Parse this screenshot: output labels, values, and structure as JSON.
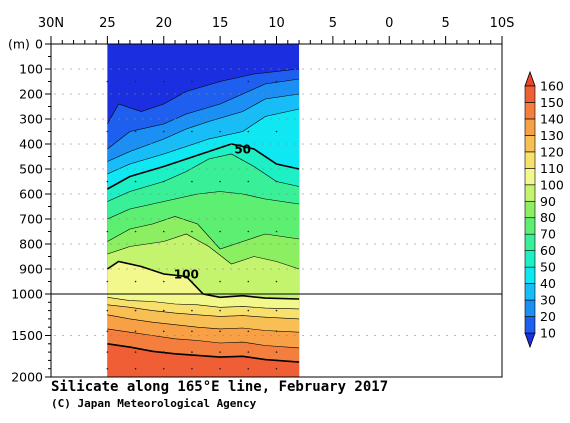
{
  "chart_data": {
    "type": "heatmap",
    "subtype": "contour-section",
    "title": "Silicate along 165°E line, February 2017",
    "credit": "(C) Japan Meteorological Agency",
    "x_axis": {
      "tick_labels": [
        "30N",
        "25",
        "20",
        "15",
        "10",
        "5",
        "0",
        "5",
        "10S"
      ],
      "range_lat": [
        30,
        -10
      ],
      "data_extent_lat": [
        25,
        8
      ]
    },
    "y_axis": {
      "unit_label": "(m)",
      "upper_ticks": [
        0,
        100,
        200,
        300,
        400,
        500,
        600,
        700,
        800,
        900,
        1000
      ],
      "lower_ticks": [
        1500,
        2000
      ],
      "break_depth": 1000,
      "range": [
        0,
        2000
      ]
    },
    "colorbar": {
      "levels": [
        10,
        20,
        30,
        40,
        50,
        60,
        70,
        80,
        90,
        100,
        110,
        120,
        130,
        140,
        150,
        160
      ],
      "colors": [
        "#1c2fe0",
        "#1f5ff0",
        "#1b8ff4",
        "#18bdf7",
        "#0fe8f2",
        "#1cf0c4",
        "#39ef98",
        "#5cef72",
        "#8cef62",
        "#c4f46e",
        "#f2f88c",
        "#f8e06c",
        "#f8c054",
        "#f8a046",
        "#f47e3e",
        "#f05e36",
        "#e8462c"
      ]
    },
    "contour_labels": [
      {
        "value": "50",
        "lat": 13,
        "depth": 420
      },
      {
        "value": "100",
        "lat": 18,
        "depth": 920
      }
    ],
    "contours": [
      {
        "value": 10,
        "points": [
          [
            25,
            320
          ],
          [
            24,
            240
          ],
          [
            22,
            270
          ],
          [
            20,
            240
          ],
          [
            18,
            190
          ],
          [
            15,
            150
          ],
          [
            12,
            120
          ],
          [
            10,
            110
          ],
          [
            8,
            100
          ]
        ]
      },
      {
        "value": 20,
        "points": [
          [
            25,
            420
          ],
          [
            23,
            350
          ],
          [
            20,
            320
          ],
          [
            18,
            280
          ],
          [
            15,
            240
          ],
          [
            13,
            200
          ],
          [
            11,
            160
          ],
          [
            8,
            140
          ]
        ]
      },
      {
        "value": 30,
        "points": [
          [
            25,
            470
          ],
          [
            23,
            430
          ],
          [
            20,
            380
          ],
          [
            18,
            340
          ],
          [
            16,
            310
          ],
          [
            13,
            270
          ],
          [
            11,
            220
          ],
          [
            8,
            200
          ]
        ]
      },
      {
        "value": 40,
        "points": [
          [
            25,
            520
          ],
          [
            23,
            480
          ],
          [
            20,
            440
          ],
          [
            18,
            410
          ],
          [
            16,
            380
          ],
          [
            13,
            350
          ],
          [
            11,
            290
          ],
          [
            8,
            260
          ]
        ]
      },
      {
        "value": 50,
        "points": [
          [
            25,
            580
          ],
          [
            23,
            530
          ],
          [
            20,
            490
          ],
          [
            18,
            460
          ],
          [
            16,
            430
          ],
          [
            14,
            400
          ],
          [
            12,
            420
          ],
          [
            10,
            480
          ],
          [
            8,
            500
          ]
        ]
      },
      {
        "value": 60,
        "points": [
          [
            25,
            630
          ],
          [
            23,
            590
          ],
          [
            20,
            550
          ],
          [
            18,
            510
          ],
          [
            16,
            460
          ],
          [
            14,
            440
          ],
          [
            12,
            490
          ],
          [
            10,
            550
          ],
          [
            8,
            570
          ]
        ]
      },
      {
        "value": 70,
        "points": [
          [
            25,
            700
          ],
          [
            23,
            660
          ],
          [
            21,
            640
          ],
          [
            19,
            620
          ],
          [
            17,
            600
          ],
          [
            15,
            590
          ],
          [
            13,
            600
          ],
          [
            11,
            620
          ],
          [
            8,
            640
          ]
        ]
      },
      {
        "value": 80,
        "points": [
          [
            25,
            790
          ],
          [
            23,
            740
          ],
          [
            21,
            720
          ],
          [
            19,
            690
          ],
          [
            17,
            720
          ],
          [
            15,
            820
          ],
          [
            13,
            790
          ],
          [
            11,
            760
          ],
          [
            8,
            780
          ]
        ]
      },
      {
        "value": 90,
        "points": [
          [
            25,
            840
          ],
          [
            23,
            810
          ],
          [
            20,
            790
          ],
          [
            18,
            760
          ],
          [
            16,
            810
          ],
          [
            14,
            880
          ],
          [
            12,
            850
          ],
          [
            10,
            870
          ],
          [
            8,
            900
          ]
        ]
      },
      {
        "value": 100,
        "points": [
          [
            25,
            900
          ],
          [
            24,
            870
          ],
          [
            22,
            890
          ],
          [
            20,
            920
          ],
          [
            18,
            930
          ],
          [
            16.5,
            1000
          ],
          [
            15,
            1040
          ],
          [
            13,
            1020
          ],
          [
            11,
            1050
          ],
          [
            8,
            1060
          ]
        ]
      },
      {
        "value": 110,
        "points": [
          [
            25,
            1040
          ],
          [
            23,
            1080
          ],
          [
            21,
            1090
          ],
          [
            19,
            1120
          ],
          [
            17,
            1130
          ],
          [
            15,
            1160
          ],
          [
            13,
            1150
          ],
          [
            11,
            1170
          ],
          [
            8,
            1180
          ]
        ]
      },
      {
        "value": 120,
        "points": [
          [
            25,
            1130
          ],
          [
            23,
            1160
          ],
          [
            21,
            1200
          ],
          [
            19,
            1230
          ],
          [
            17,
            1250
          ],
          [
            15,
            1270
          ],
          [
            13,
            1260
          ],
          [
            11,
            1280
          ],
          [
            8,
            1300
          ]
        ]
      },
      {
        "value": 130,
        "points": [
          [
            25,
            1250
          ],
          [
            23,
            1300
          ],
          [
            21,
            1340
          ],
          [
            19,
            1370
          ],
          [
            17,
            1400
          ],
          [
            15,
            1420
          ],
          [
            13,
            1410
          ],
          [
            11,
            1440
          ],
          [
            8,
            1460
          ]
        ]
      },
      {
        "value": 140,
        "points": [
          [
            25,
            1420
          ],
          [
            23,
            1460
          ],
          [
            21,
            1500
          ],
          [
            19,
            1540
          ],
          [
            17,
            1560
          ],
          [
            15,
            1590
          ],
          [
            13,
            1580
          ],
          [
            11,
            1620
          ],
          [
            8,
            1650
          ]
        ]
      },
      {
        "value": 150,
        "points": [
          [
            25,
            1600
          ],
          [
            23,
            1640
          ],
          [
            21,
            1690
          ],
          [
            19,
            1720
          ],
          [
            17,
            1740
          ],
          [
            15,
            1760
          ],
          [
            13,
            1750
          ],
          [
            11,
            1790
          ],
          [
            8,
            1820
          ]
        ]
      }
    ]
  }
}
